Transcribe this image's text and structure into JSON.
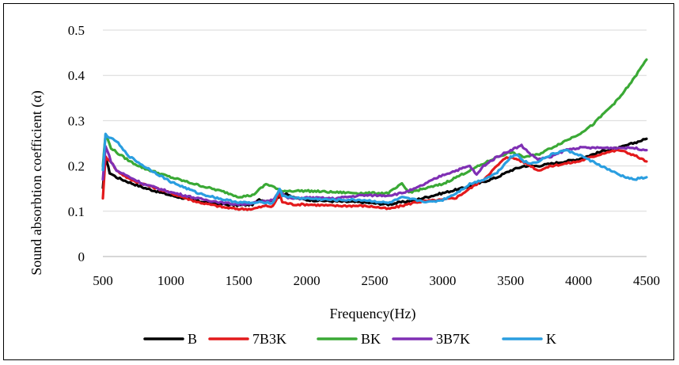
{
  "chart_data": {
    "type": "line",
    "xlabel": "Frequency(Hz)",
    "ylabel": "Sound absorbtion coefficient  (α)",
    "xlim": [
      500,
      4500
    ],
    "ylim": [
      0,
      0.5
    ],
    "x_ticks": [
      500,
      1000,
      1500,
      2000,
      2500,
      3000,
      3500,
      4000,
      4500
    ],
    "y_ticks": [
      0,
      0.1,
      0.2,
      0.3,
      0.4,
      0.5
    ],
    "x_tick_labels": [
      "500",
      "1000",
      "1500",
      "2000",
      "2500",
      "3000",
      "3500",
      "4000",
      "4500"
    ],
    "y_tick_labels": [
      "0",
      "0.1",
      "0.2",
      "0.3",
      "0.4",
      "0.5"
    ],
    "grid": true,
    "legend_position": "bottom",
    "series": [
      {
        "name": "B",
        "color": "#000000",
        "points": [
          [
            500,
            0.15
          ],
          [
            520,
            0.22
          ],
          [
            550,
            0.185
          ],
          [
            600,
            0.175
          ],
          [
            700,
            0.163
          ],
          [
            800,
            0.152
          ],
          [
            1000,
            0.135
          ],
          [
            1200,
            0.122
          ],
          [
            1400,
            0.115
          ],
          [
            1500,
            0.113
          ],
          [
            1600,
            0.115
          ],
          [
            1650,
            0.125
          ],
          [
            1700,
            0.123
          ],
          [
            1750,
            0.125
          ],
          [
            1800,
            0.133
          ],
          [
            1850,
            0.14
          ],
          [
            1900,
            0.13
          ],
          [
            2000,
            0.125
          ],
          [
            2200,
            0.122
          ],
          [
            2400,
            0.12
          ],
          [
            2600,
            0.115
          ],
          [
            2800,
            0.125
          ],
          [
            3000,
            0.14
          ],
          [
            3200,
            0.155
          ],
          [
            3400,
            0.175
          ],
          [
            3500,
            0.19
          ],
          [
            3600,
            0.2
          ],
          [
            3700,
            0.2
          ],
          [
            3800,
            0.205
          ],
          [
            3900,
            0.21
          ],
          [
            4000,
            0.215
          ],
          [
            4100,
            0.225
          ],
          [
            4200,
            0.235
          ],
          [
            4300,
            0.24
          ],
          [
            4400,
            0.25
          ],
          [
            4500,
            0.26
          ]
        ]
      },
      {
        "name": "7B3K",
        "color": "#e31a1c",
        "points": [
          [
            500,
            0.13
          ],
          [
            520,
            0.22
          ],
          [
            560,
            0.21
          ],
          [
            600,
            0.19
          ],
          [
            700,
            0.17
          ],
          [
            800,
            0.16
          ],
          [
            1000,
            0.14
          ],
          [
            1200,
            0.12
          ],
          [
            1400,
            0.108
          ],
          [
            1500,
            0.105
          ],
          [
            1600,
            0.105
          ],
          [
            1700,
            0.112
          ],
          [
            1750,
            0.11
          ],
          [
            1800,
            0.14
          ],
          [
            1820,
            0.12
          ],
          [
            1900,
            0.115
          ],
          [
            2000,
            0.115
          ],
          [
            2200,
            0.112
          ],
          [
            2400,
            0.112
          ],
          [
            2500,
            0.11
          ],
          [
            2600,
            0.105
          ],
          [
            2700,
            0.112
          ],
          [
            2800,
            0.12
          ],
          [
            2900,
            0.123
          ],
          [
            3000,
            0.125
          ],
          [
            3100,
            0.13
          ],
          [
            3200,
            0.15
          ],
          [
            3300,
            0.17
          ],
          [
            3400,
            0.2
          ],
          [
            3470,
            0.22
          ],
          [
            3550,
            0.215
          ],
          [
            3650,
            0.2
          ],
          [
            3700,
            0.19
          ],
          [
            3800,
            0.2
          ],
          [
            3900,
            0.205
          ],
          [
            4000,
            0.21
          ],
          [
            4100,
            0.22
          ],
          [
            4200,
            0.23
          ],
          [
            4300,
            0.235
          ],
          [
            4400,
            0.225
          ],
          [
            4500,
            0.21
          ]
        ]
      },
      {
        "name": "BK",
        "color": "#3aa935",
        "points": [
          [
            500,
            0.2
          ],
          [
            520,
            0.27
          ],
          [
            560,
            0.24
          ],
          [
            600,
            0.23
          ],
          [
            700,
            0.21
          ],
          [
            800,
            0.195
          ],
          [
            1000,
            0.175
          ],
          [
            1200,
            0.158
          ],
          [
            1400,
            0.142
          ],
          [
            1500,
            0.132
          ],
          [
            1600,
            0.135
          ],
          [
            1700,
            0.16
          ],
          [
            1750,
            0.155
          ],
          [
            1800,
            0.145
          ],
          [
            1900,
            0.145
          ],
          [
            2000,
            0.145
          ],
          [
            2200,
            0.142
          ],
          [
            2400,
            0.14
          ],
          [
            2600,
            0.14
          ],
          [
            2700,
            0.16
          ],
          [
            2750,
            0.142
          ],
          [
            2800,
            0.145
          ],
          [
            3000,
            0.16
          ],
          [
            3200,
            0.19
          ],
          [
            3400,
            0.22
          ],
          [
            3500,
            0.23
          ],
          [
            3600,
            0.22
          ],
          [
            3700,
            0.225
          ],
          [
            3800,
            0.24
          ],
          [
            3900,
            0.255
          ],
          [
            4000,
            0.27
          ],
          [
            4100,
            0.29
          ],
          [
            4200,
            0.32
          ],
          [
            4300,
            0.35
          ],
          [
            4400,
            0.39
          ],
          [
            4500,
            0.435
          ]
        ]
      },
      {
        "name": "3B7K",
        "color": "#7f2fb4",
        "points": [
          [
            500,
            0.17
          ],
          [
            520,
            0.245
          ],
          [
            560,
            0.21
          ],
          [
            600,
            0.19
          ],
          [
            700,
            0.175
          ],
          [
            800,
            0.16
          ],
          [
            1000,
            0.142
          ],
          [
            1200,
            0.128
          ],
          [
            1400,
            0.118
          ],
          [
            1500,
            0.115
          ],
          [
            1600,
            0.118
          ],
          [
            1700,
            0.122
          ],
          [
            1750,
            0.125
          ],
          [
            1800,
            0.145
          ],
          [
            1850,
            0.13
          ],
          [
            1900,
            0.128
          ],
          [
            2000,
            0.13
          ],
          [
            2200,
            0.128
          ],
          [
            2400,
            0.135
          ],
          [
            2600,
            0.135
          ],
          [
            2700,
            0.14
          ],
          [
            2800,
            0.15
          ],
          [
            2900,
            0.165
          ],
          [
            3000,
            0.18
          ],
          [
            3100,
            0.19
          ],
          [
            3200,
            0.2
          ],
          [
            3250,
            0.18
          ],
          [
            3300,
            0.2
          ],
          [
            3400,
            0.22
          ],
          [
            3500,
            0.235
          ],
          [
            3580,
            0.245
          ],
          [
            3650,
            0.225
          ],
          [
            3700,
            0.215
          ],
          [
            3800,
            0.22
          ],
          [
            3900,
            0.235
          ],
          [
            4000,
            0.24
          ],
          [
            4100,
            0.24
          ],
          [
            4200,
            0.24
          ],
          [
            4300,
            0.24
          ],
          [
            4400,
            0.24
          ],
          [
            4500,
            0.235
          ]
        ]
      },
      {
        "name": "K",
        "color": "#2a9ee0",
        "points": [
          [
            500,
            0.19
          ],
          [
            520,
            0.27
          ],
          [
            560,
            0.26
          ],
          [
            600,
            0.255
          ],
          [
            650,
            0.235
          ],
          [
            700,
            0.22
          ],
          [
            800,
            0.2
          ],
          [
            1000,
            0.165
          ],
          [
            1200,
            0.14
          ],
          [
            1400,
            0.125
          ],
          [
            1500,
            0.12
          ],
          [
            1600,
            0.118
          ],
          [
            1700,
            0.12
          ],
          [
            1750,
            0.118
          ],
          [
            1800,
            0.15
          ],
          [
            1820,
            0.135
          ],
          [
            1900,
            0.13
          ],
          [
            2000,
            0.128
          ],
          [
            2200,
            0.125
          ],
          [
            2400,
            0.125
          ],
          [
            2500,
            0.122
          ],
          [
            2600,
            0.118
          ],
          [
            2700,
            0.13
          ],
          [
            2800,
            0.125
          ],
          [
            2900,
            0.12
          ],
          [
            3000,
            0.125
          ],
          [
            3100,
            0.14
          ],
          [
            3200,
            0.16
          ],
          [
            3300,
            0.17
          ],
          [
            3400,
            0.185
          ],
          [
            3500,
            0.22
          ],
          [
            3550,
            0.225
          ],
          [
            3600,
            0.21
          ],
          [
            3650,
            0.205
          ],
          [
            3700,
            0.21
          ],
          [
            3800,
            0.225
          ],
          [
            3900,
            0.235
          ],
          [
            4000,
            0.225
          ],
          [
            4100,
            0.21
          ],
          [
            4200,
            0.195
          ],
          [
            4300,
            0.18
          ],
          [
            4400,
            0.17
          ],
          [
            4500,
            0.175
          ]
        ]
      }
    ]
  }
}
